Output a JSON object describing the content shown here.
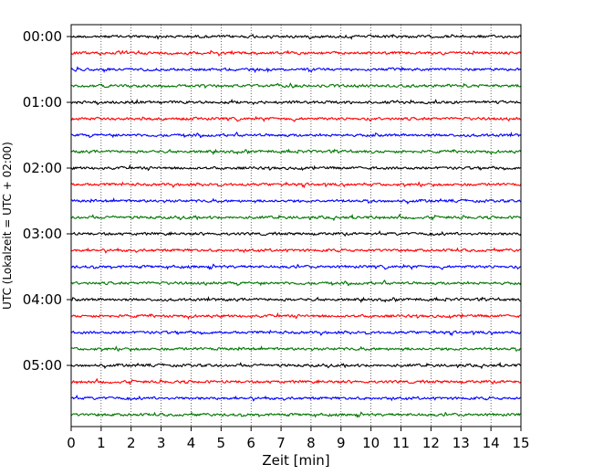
{
  "chart_data": {
    "type": "line",
    "title": "",
    "xlabel": "Zeit  [min]",
    "ylabel": "UTC (Lokalzeit = UTC + 02:00)",
    "xlim": [
      0,
      15
    ],
    "x_ticks": [
      "0",
      "1",
      "2",
      "3",
      "4",
      "5",
      "6",
      "7",
      "8",
      "9",
      "10",
      "11",
      "12",
      "13",
      "14",
      "15"
    ],
    "y_ticks": [
      "00:00",
      "01:00",
      "02:00",
      "03:00",
      "04:00",
      "05:00"
    ],
    "rows_per_hour": 4,
    "minutes_per_row": 15,
    "grid": "vertical dotted lines at each minute",
    "trace_color_cycle": [
      "#000000",
      "#ff0000",
      "#0000ff",
      "#007700"
    ],
    "rows": [
      {
        "start": "00:00",
        "color": "#000000"
      },
      {
        "start": "00:15",
        "color": "#ff0000"
      },
      {
        "start": "00:30",
        "color": "#0000ff"
      },
      {
        "start": "00:45",
        "color": "#007700"
      },
      {
        "start": "01:00",
        "color": "#000000"
      },
      {
        "start": "01:15",
        "color": "#ff0000"
      },
      {
        "start": "01:30",
        "color": "#0000ff"
      },
      {
        "start": "01:45",
        "color": "#007700"
      },
      {
        "start": "02:00",
        "color": "#000000"
      },
      {
        "start": "02:15",
        "color": "#ff0000"
      },
      {
        "start": "02:30",
        "color": "#0000ff"
      },
      {
        "start": "02:45",
        "color": "#007700"
      },
      {
        "start": "03:00",
        "color": "#000000"
      },
      {
        "start": "03:15",
        "color": "#ff0000"
      },
      {
        "start": "03:30",
        "color": "#0000ff"
      },
      {
        "start": "03:45",
        "color": "#007700"
      },
      {
        "start": "04:00",
        "color": "#000000"
      },
      {
        "start": "04:15",
        "color": "#ff0000"
      },
      {
        "start": "04:30",
        "color": "#0000ff"
      },
      {
        "start": "04:45",
        "color": "#007700"
      },
      {
        "start": "05:00",
        "color": "#000000"
      },
      {
        "start": "05:15",
        "color": "#ff0000"
      },
      {
        "start": "05:30",
        "color": "#0000ff"
      },
      {
        "start": "05:45",
        "color": "#007700"
      }
    ]
  }
}
